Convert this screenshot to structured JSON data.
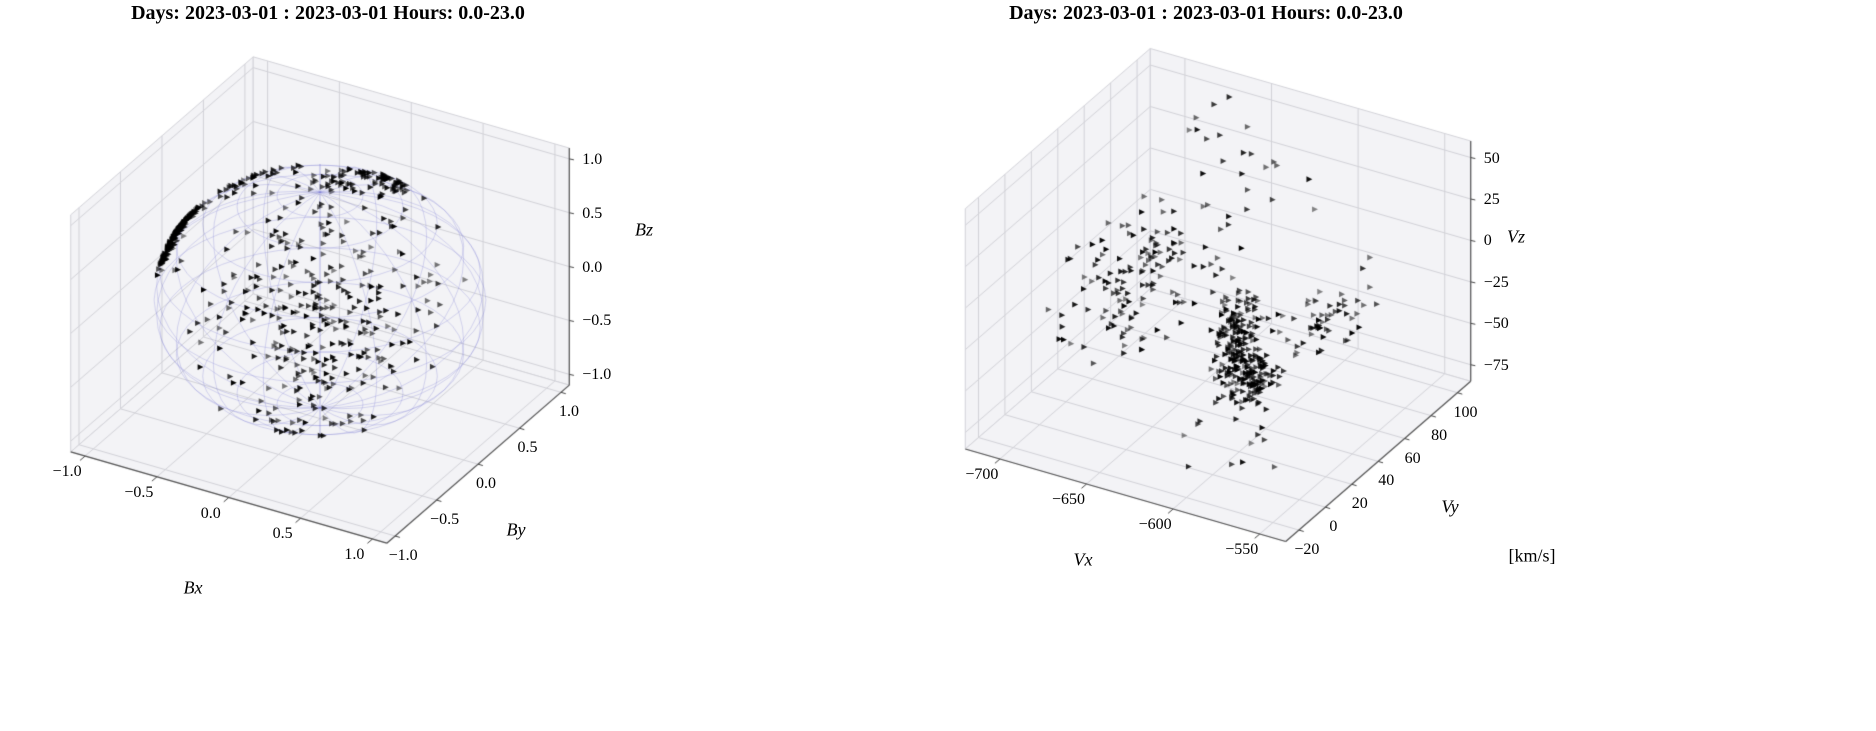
{
  "figure": {
    "background": "#ffffff"
  },
  "colors": {
    "pane": "#f3f3f6",
    "grid": "#d2d2d8",
    "axis_line": "#555555",
    "tick_mark": "#444444",
    "tick_label": "#000000"
  },
  "chart_data": [
    {
      "type": "scatter3d",
      "title": "Days: 2023-03-01 : 2023-03-01 Hours: 0.0-23.0",
      "view": {
        "elev": 30,
        "azim": -60
      },
      "marker": {
        "shape": "triangle-right",
        "color": "#000000"
      },
      "axes": {
        "x": {
          "label": "Bx",
          "min": -1.1,
          "max": 1.1,
          "tick_values": [
            -1.0,
            -0.5,
            0.0,
            0.5,
            1.0
          ],
          "tick_labels": [
            "−1.0",
            "−0.5",
            "0.0",
            "0.5",
            "1.0"
          ]
        },
        "y": {
          "label": "By",
          "min": -1.1,
          "max": 1.1,
          "tick_values": [
            -1.0,
            -0.5,
            0.0,
            0.5,
            1.0
          ],
          "tick_labels": [
            "−1.0",
            "−0.5",
            "0.0",
            "0.5",
            "1.0"
          ]
        },
        "z": {
          "label": "Bz",
          "min": -1.1,
          "max": 1.1,
          "tick_values": [
            -1.0,
            -0.5,
            0.0,
            0.5,
            1.0
          ],
          "tick_labels": [
            "−1.0",
            "−0.5",
            "0.0",
            "0.5",
            "1.0"
          ]
        }
      },
      "sphere": {
        "radius": 1.0,
        "color": "rgba(120,120,210,0.35)"
      },
      "clusters": [
        {
          "dir": [
            -0.88,
            -0.16,
            0.45
          ],
          "spread": 0.09,
          "count": 120
        },
        {
          "dir": [
            -0.97,
            -0.15,
            0.19
          ],
          "spread": 0.07,
          "count": 55
        },
        {
          "dir": [
            0.2,
            0.48,
            0.85
          ],
          "spread": 0.1,
          "count": 55
        },
        {
          "dir": [
            0.0,
            0.2,
            0.98
          ],
          "spread": 0.12,
          "count": 40
        },
        {
          "dir": [
            -0.6,
            0.2,
            0.77
          ],
          "spread": 0.15,
          "count": 35
        },
        {
          "dir": [
            0.35,
            -0.6,
            0.72
          ],
          "spread": 0.42,
          "count": 190
        },
        {
          "dir": [
            0.5,
            -0.8,
            0.25
          ],
          "spread": 0.3,
          "count": 120
        },
        {
          "dir": [
            0.3,
            -0.7,
            -0.5
          ],
          "spread": 0.2,
          "count": 25
        }
      ]
    },
    {
      "type": "scatter3d",
      "title": "Days: 2023-03-01 : 2023-03-01 Hours: 0.0-23.0",
      "view": {
        "elev": 30,
        "azim": -60
      },
      "marker": {
        "shape": "triangle-right",
        "color": "#000000"
      },
      "annotation": "[km/s]",
      "axes": {
        "x": {
          "label": "Vx",
          "min": -720,
          "max": -535,
          "tick_values": [
            -700,
            -650,
            -600,
            -550
          ],
          "tick_labels": [
            "−700",
            "−650",
            "−600",
            "−550"
          ]
        },
        "y": {
          "label": "Vy",
          "min": -30,
          "max": 110,
          "tick_values": [
            -20,
            0,
            20,
            40,
            60,
            80,
            100
          ],
          "tick_labels": [
            "−20",
            "0",
            "20",
            "40",
            "60",
            "80",
            "100"
          ]
        },
        "z": {
          "label": "Vz",
          "min": -85,
          "max": 60,
          "tick_values": [
            -75,
            -50,
            -25,
            0,
            25,
            50
          ],
          "tick_labels": [
            "−75",
            "−50",
            "−25",
            "0",
            "25",
            "50"
          ]
        }
      },
      "clusters": [
        {
          "center": [
            -615,
            38,
            -35
          ],
          "sigma": [
            5,
            6,
            18
          ],
          "count": 190
        },
        {
          "center": [
            -610,
            46,
            -62
          ],
          "sigma": [
            4,
            5,
            7
          ],
          "count": 90
        },
        {
          "center": [
            -596,
            80,
            -45
          ],
          "sigma": [
            9,
            14,
            6
          ],
          "count": 55
        },
        {
          "center": [
            -655,
            30,
            12
          ],
          "sigma": [
            16,
            14,
            14
          ],
          "count": 85
        },
        {
          "center": [
            -668,
            8,
            -12
          ],
          "sigma": [
            14,
            11,
            16
          ],
          "count": 50
        },
        {
          "center": [
            -624,
            55,
            45
          ],
          "sigma": [
            14,
            12,
            8
          ],
          "count": 16
        },
        {
          "center": [
            -600,
            18,
            -72
          ],
          "sigma": [
            18,
            14,
            5
          ],
          "count": 12
        },
        {
          "center": [
            -665,
            75,
            55
          ],
          "sigma": [
            10,
            12,
            4
          ],
          "count": 7
        }
      ]
    }
  ]
}
